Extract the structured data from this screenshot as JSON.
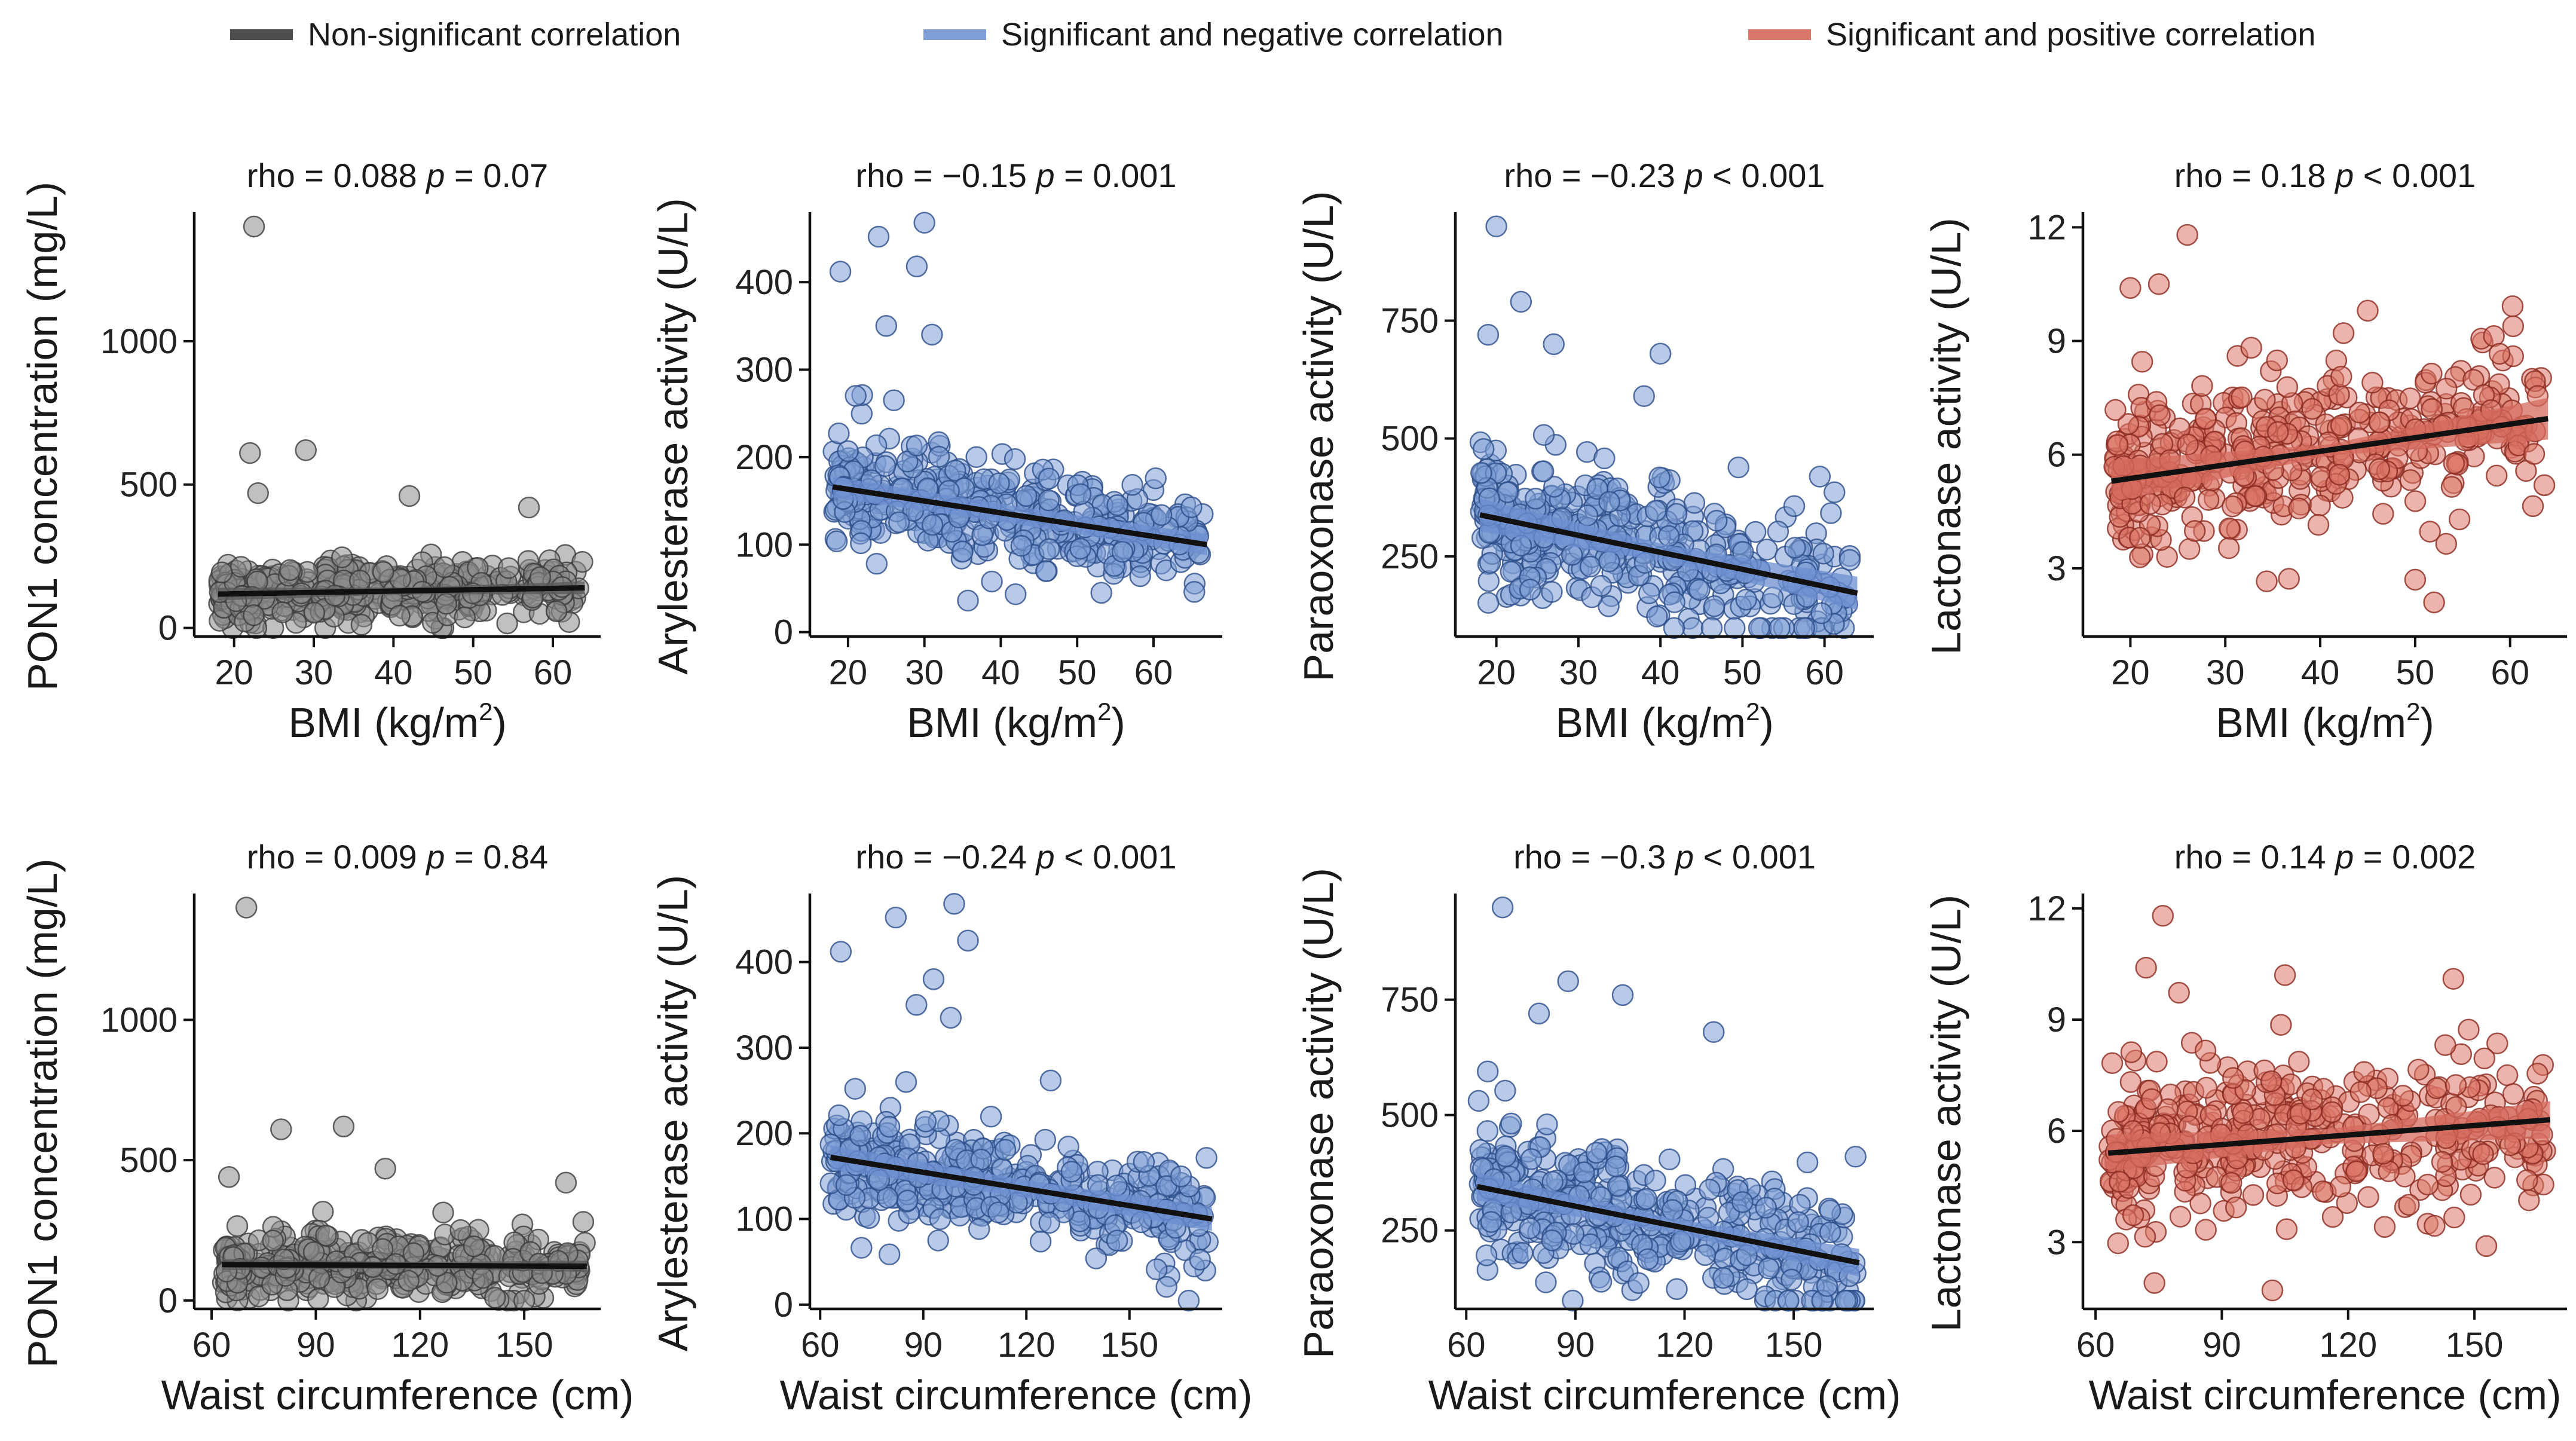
{
  "legend": [
    {
      "label": "Non-significant correlation",
      "color": "#4d4d4d"
    },
    {
      "label": "Significant and negative correlation",
      "color": "#7f9fd6"
    },
    {
      "label": "Significant and positive correlation",
      "color": "#d9776a"
    }
  ],
  "chart_data": [
    {
      "type": "scatter",
      "title": "rho = 0.088",
      "title_p": "p",
      "title_tail": " = 0.07",
      "xlabel": "BMI (kg/m",
      "xlabel_sup": "2",
      "xlabel_end": ")",
      "ylabel": "PON1 concentration (mg/L)",
      "xlim": [
        15,
        66
      ],
      "ylim": [
        -30,
        1450
      ],
      "xticks": [
        20,
        30,
        40,
        50,
        60
      ],
      "xtick_labels": [
        "20",
        "30",
        "40",
        "50",
        "60"
      ],
      "yticks": [
        0,
        500,
        1000
      ],
      "ytick_labels": [
        "0",
        "500",
        "1000"
      ],
      "trend": [
        [
          18,
          118
        ],
        [
          64,
          140
        ]
      ],
      "band_half": [
        12,
        22
      ],
      "x_range": [
        18,
        64
      ],
      "n": 420,
      "resid_sd": 70,
      "style": "nonsig",
      "outliers": [
        [
          22.5,
          1400
        ],
        [
          22,
          610
        ],
        [
          29,
          620
        ],
        [
          23,
          470
        ],
        [
          42,
          460
        ],
        [
          57,
          420
        ]
      ]
    },
    {
      "type": "scatter",
      "title": "rho = −0.15",
      "title_p": "p",
      "title_tail": " = 0.001",
      "xlabel": "BMI (kg/m",
      "xlabel_sup": "2",
      "xlabel_end": ")",
      "ylabel": "Arylesterase activity (U/L)",
      "xlim": [
        15,
        69
      ],
      "ylim": [
        -5,
        480
      ],
      "xticks": [
        20,
        30,
        40,
        50,
        60
      ],
      "xtick_labels": [
        "20",
        "30",
        "40",
        "50",
        "60"
      ],
      "yticks": [
        0,
        100,
        200,
        300,
        400
      ],
      "ytick_labels": [
        "0",
        "100",
        "200",
        "300",
        "400"
      ],
      "trend": [
        [
          18,
          166
        ],
        [
          67,
          100
        ]
      ],
      "band_half": [
        10,
        12
      ],
      "x_range": [
        18,
        67
      ],
      "n": 420,
      "resid_sd": 38,
      "style": "neg",
      "outliers": [
        [
          30,
          468
        ],
        [
          24,
          452
        ],
        [
          29,
          418
        ],
        [
          19,
          412
        ],
        [
          31,
          340
        ],
        [
          25,
          350
        ],
        [
          21,
          270
        ],
        [
          26,
          265
        ]
      ]
    },
    {
      "type": "scatter",
      "title": "rho = −0.23",
      "title_p": "p",
      "title_tail": " < 0.001",
      "xlabel": "BMI (kg/m",
      "xlabel_sup": "2",
      "xlabel_end": ")",
      "ylabel": "Paraoxonase activity (U/L)",
      "xlim": [
        15,
        66
      ],
      "ylim": [
        80,
        980
      ],
      "xticks": [
        20,
        30,
        40,
        50,
        60
      ],
      "xtick_labels": [
        "20",
        "30",
        "40",
        "50",
        "60"
      ],
      "yticks": [
        250,
        500,
        750
      ],
      "ytick_labels": [
        "250",
        "500",
        "750"
      ],
      "trend": [
        [
          18,
          338
        ],
        [
          64,
          172
        ]
      ],
      "band_half": [
        18,
        35
      ],
      "x_range": [
        18,
        64
      ],
      "n": 420,
      "resid_sd": 95,
      "style": "neg",
      "outliers": [
        [
          20,
          950
        ],
        [
          23,
          790
        ],
        [
          19,
          720
        ],
        [
          27,
          700
        ],
        [
          40,
          680
        ],
        [
          38,
          590
        ]
      ]
    },
    {
      "type": "scatter",
      "title": "rho = 0.18",
      "title_p": "p",
      "title_tail": " < 0.001",
      "xlabel": "BMI (kg/m",
      "xlabel_sup": "2",
      "xlabel_end": ")",
      "ylabel": "Lactonase activity (U/L)",
      "xlim": [
        15,
        66
      ],
      "ylim": [
        1.2,
        12.4
      ],
      "xticks": [
        20,
        30,
        40,
        50,
        60
      ],
      "xtick_labels": [
        "20",
        "30",
        "40",
        "50",
        "60"
      ],
      "yticks": [
        3,
        6,
        9,
        12
      ],
      "ytick_labels": [
        "3",
        "6",
        "9",
        "12"
      ],
      "trend": [
        [
          18,
          5.3
        ],
        [
          64,
          6.95
        ]
      ],
      "band_half": [
        0.15,
        0.55
      ],
      "x_range": [
        18,
        64
      ],
      "n": 420,
      "resid_sd": 1.5,
      "style": "pos",
      "outliers": [
        [
          26,
          11.8
        ],
        [
          20,
          10.4
        ],
        [
          23,
          10.5
        ],
        [
          45,
          9.8
        ],
        [
          52,
          2.1
        ],
        [
          50,
          2.7
        ]
      ]
    },
    {
      "type": "scatter",
      "title": "rho = 0.009",
      "title_p": "p",
      "title_tail": " = 0.84",
      "xlabel": "Waist circumference (cm)",
      "xlabel_sup": "",
      "xlabel_end": "",
      "ylabel": "PON1 concentration (mg/L)",
      "xlim": [
        55,
        172
      ],
      "ylim": [
        -30,
        1450
      ],
      "xticks": [
        60,
        90,
        120,
        150
      ],
      "xtick_labels": [
        "60",
        "90",
        "120",
        "150"
      ],
      "yticks": [
        0,
        500,
        1000
      ],
      "ytick_labels": [
        "0",
        "500",
        "1000"
      ],
      "trend": [
        [
          63,
          128
        ],
        [
          168,
          122
        ]
      ],
      "band_half": [
        12,
        20
      ],
      "x_range": [
        63,
        168
      ],
      "n": 420,
      "resid_sd": 70,
      "style": "nonsig",
      "outliers": [
        [
          70,
          1400
        ],
        [
          98,
          620
        ],
        [
          80,
          610
        ],
        [
          65,
          440
        ],
        [
          110,
          470
        ],
        [
          162,
          420
        ],
        [
          167,
          280
        ]
      ]
    },
    {
      "type": "scatter",
      "title": "rho = −0.24",
      "title_p": "p",
      "title_tail": " < 0.001",
      "xlabel": "Waist circumference (cm)",
      "xlabel_sup": "",
      "xlabel_end": "",
      "ylabel": "Arylesterase activity (U/L)",
      "xlim": [
        57,
        177
      ],
      "ylim": [
        -5,
        480
      ],
      "xticks": [
        60,
        90,
        120,
        150
      ],
      "xtick_labels": [
        "60",
        "90",
        "120",
        "150"
      ],
      "yticks": [
        0,
        100,
        200,
        300,
        400
      ],
      "ytick_labels": [
        "0",
        "100",
        "200",
        "300",
        "400"
      ],
      "trend": [
        [
          63,
          172
        ],
        [
          174,
          100
        ]
      ],
      "band_half": [
        10,
        14
      ],
      "x_range": [
        63,
        174
      ],
      "n": 420,
      "resid_sd": 38,
      "style": "neg",
      "outliers": [
        [
          99,
          468
        ],
        [
          82,
          452
        ],
        [
          103,
          425
        ],
        [
          66,
          412
        ],
        [
          93,
          380
        ],
        [
          88,
          350
        ],
        [
          98,
          335
        ],
        [
          85,
          260
        ]
      ]
    },
    {
      "type": "scatter",
      "title": "rho = −0.3",
      "title_p": "p",
      "title_tail": " < 0.001",
      "xlabel": "Waist circumference (cm)",
      "xlabel_sup": "",
      "xlabel_end": "",
      "ylabel": "Paraoxonase activity (U/L)",
      "xlim": [
        57,
        172
      ],
      "ylim": [
        80,
        980
      ],
      "xticks": [
        60,
        90,
        120,
        150
      ],
      "xtick_labels": [
        "60",
        "90",
        "120",
        "150"
      ],
      "yticks": [
        250,
        500,
        750
      ],
      "ytick_labels": [
        "250",
        "500",
        "750"
      ],
      "trend": [
        [
          63,
          345
        ],
        [
          168,
          180
        ]
      ],
      "band_half": [
        15,
        30
      ],
      "x_range": [
        63,
        168
      ],
      "n": 420,
      "resid_sd": 95,
      "style": "neg",
      "outliers": [
        [
          70,
          950
        ],
        [
          88,
          790
        ],
        [
          103,
          760
        ],
        [
          80,
          720
        ],
        [
          128,
          680
        ],
        [
          167,
          410
        ]
      ]
    },
    {
      "type": "scatter",
      "title": "rho = 0.14",
      "title_p": "p",
      "title_tail": " = 0.002",
      "xlabel": "Waist circumference (cm)",
      "xlabel_sup": "",
      "xlabel_end": "",
      "ylabel": "Lactonase activity (U/L)",
      "xlim": [
        57,
        172
      ],
      "ylim": [
        1.2,
        12.4
      ],
      "xticks": [
        60,
        90,
        120,
        150
      ],
      "xtick_labels": [
        "60",
        "90",
        "120",
        "150"
      ],
      "yticks": [
        3,
        6,
        9,
        12
      ],
      "ytick_labels": [
        "3",
        "6",
        "9",
        "12"
      ],
      "trend": [
        [
          63,
          5.4
        ],
        [
          168,
          6.3
        ]
      ],
      "band_half": [
        0.2,
        0.5
      ],
      "x_range": [
        63,
        168
      ],
      "n": 420,
      "resid_sd": 1.5,
      "style": "pos",
      "outliers": [
        [
          76,
          11.8
        ],
        [
          72,
          10.4
        ],
        [
          105,
          10.2
        ],
        [
          145,
          10.1
        ],
        [
          102,
          1.7
        ],
        [
          74,
          1.9
        ]
      ]
    }
  ]
}
